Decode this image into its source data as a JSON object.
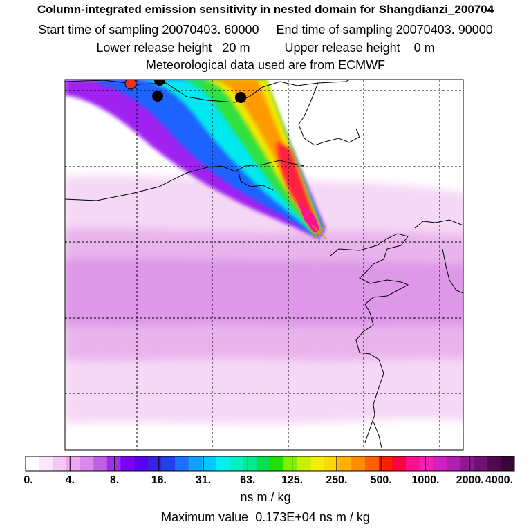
{
  "header": {
    "title": "Column-integrated emission sensitivity in nested domain for Shangdianzi_200704",
    "start_label": "Start time of sampling",
    "start_value": "20070403. 60000",
    "end_label": "End time of sampling",
    "end_value": "20070403. 90000",
    "lower_label": "Lower release height",
    "lower_value": "20 m",
    "upper_label": "Upper release height",
    "upper_value": "0 m",
    "met_line": "Meteorological data used are from ECMWF"
  },
  "colorbar": {
    "labels": [
      "0.",
      "4.",
      "8.",
      "16.",
      "31.",
      "63.",
      "125.",
      "250.",
      "500.",
      "1000.",
      "2000.",
      "4000."
    ],
    "colors": [
      "#ffffff",
      "#fbe6fb",
      "#f4c8f4",
      "#eda6f0",
      "#d98ae8",
      "#c060e8",
      "#a030e8",
      "#7a00f0",
      "#5a00f0",
      "#3a20e0",
      "#2040e8",
      "#2070ff",
      "#10a0ff",
      "#00c8ff",
      "#00f0f0",
      "#00f0c0",
      "#00e890",
      "#00e050",
      "#20e000",
      "#80f000",
      "#c8f000",
      "#f0f000",
      "#ffd800",
      "#ffb000",
      "#ff8c00",
      "#ff6000",
      "#ff2000",
      "#ff0040",
      "#ff1090",
      "#f020b0",
      "#d020c0",
      "#b020b0",
      "#901890",
      "#701070",
      "#500850",
      "#380538"
    ],
    "units": "ns m / kg"
  },
  "footer": {
    "max_label": "Maximum value",
    "max_value": "0.173E+04",
    "max_units": "ns m / kg"
  },
  "markers": [
    {
      "name": "station-dot-red",
      "color": "#e8321e"
    },
    {
      "name": "station-dot-black",
      "color": "#000000"
    },
    {
      "name": "station-dot-black",
      "color": "#000000"
    },
    {
      "name": "station-dot-black",
      "color": "#000000"
    },
    {
      "name": "release-site-cross",
      "color": "#c8a000"
    }
  ]
}
